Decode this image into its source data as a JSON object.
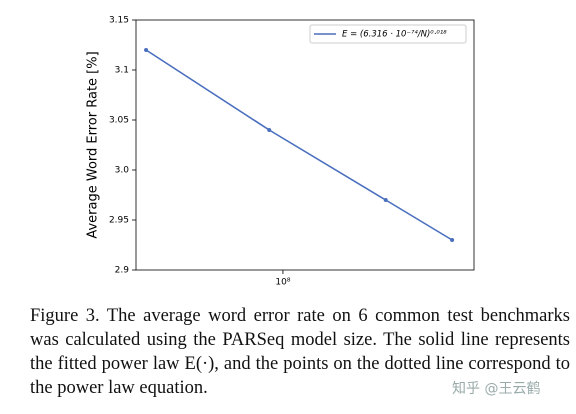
{
  "chart_data": {
    "type": "line",
    "y_label": "Average Word Error Rate [%]",
    "x": [
      35000000,
      90000000,
      220000000,
      366000000
    ],
    "series": [
      {
        "name": "E = (6.316 · 10⁻⁷⁴/N)⁰·⁰¹⁸",
        "color": "#4a6fbe",
        "values": [
          3.12,
          3.04,
          2.97,
          2.93
        ]
      }
    ],
    "xlim": [
      32400000,
      433000000
    ],
    "xscale": "log",
    "xticks": [
      {
        "value": 100000000,
        "label": "10⁸"
      }
    ],
    "ylim": [
      2.9,
      3.15
    ],
    "yticks": [
      2.9,
      2.95,
      {
        "value": 3,
        "label": "3.0"
      },
      3.05,
      3.1,
      3.15
    ],
    "legend": "upper right"
  },
  "caption": "Figure 3. The average word error rate on 6 common test benchmarks was calculated using the PARSeq model size. The solid line represents the fitted power law E(·), and the points on the dotted line correspond to the power law equation.",
  "watermark": "知乎 @王云鹤"
}
